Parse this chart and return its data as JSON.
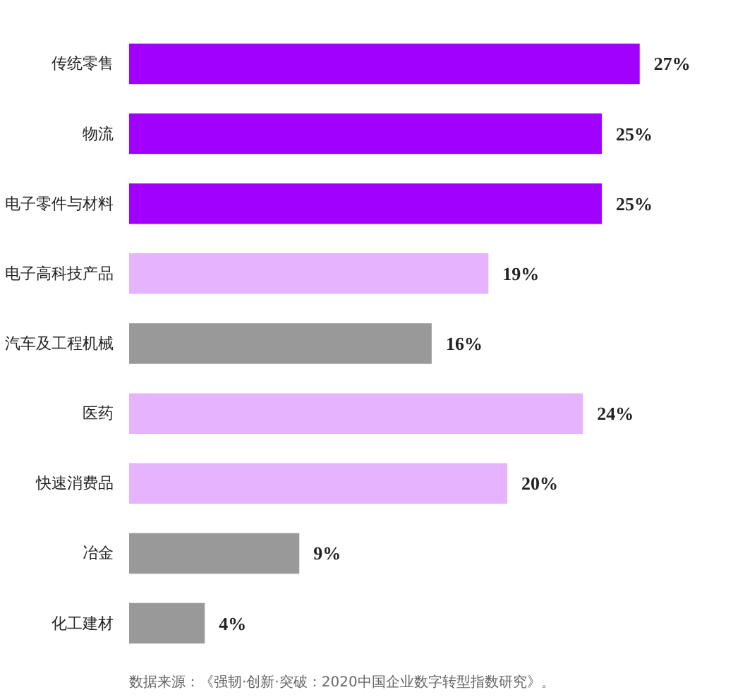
{
  "chart_data": {
    "type": "bar",
    "orientation": "horizontal",
    "categories": [
      "传统零售",
      "物流",
      "电子零件与材料",
      "电子高科技产品",
      "汽车及工程机械",
      "医药",
      "快速消费品",
      "冶金",
      "化工建材"
    ],
    "values": [
      27,
      25,
      25,
      19,
      16,
      24,
      20,
      9,
      4
    ],
    "colors": [
      "#a100ff",
      "#a100ff",
      "#a100ff",
      "#e6b3ff",
      "#999999",
      "#e6b3ff",
      "#e6b3ff",
      "#999999",
      "#999999"
    ],
    "value_labels": [
      "27%",
      "25%",
      "25%",
      "19%",
      "16%",
      "24%",
      "20%",
      "9%",
      "4%"
    ],
    "grid": false,
    "annotations": [
      "数据来源：《强韧·创新·突破：2020中国企业数字转型指数研究》。"
    ]
  }
}
